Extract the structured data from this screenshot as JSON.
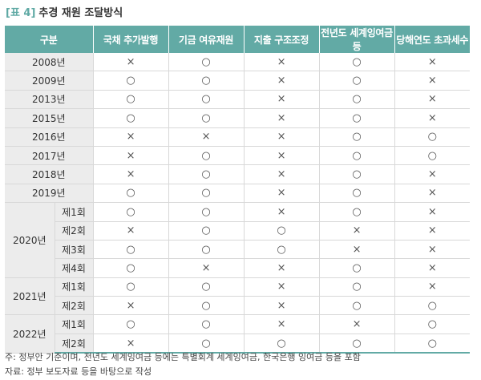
{
  "header": {
    "tag": "[표 4]",
    "title": "추경 재원 조달방식"
  },
  "table": {
    "columns": [
      "구분",
      "국채 추가발행",
      "기금 여유재원",
      "지출 구조조정",
      "전년도 세계잉여금 등",
      "당해연도 초과세수"
    ],
    "groups": [
      {
        "year": "2008년",
        "cells": [
          "×",
          "○",
          "×",
          "○",
          "×"
        ]
      },
      {
        "year": "2009년",
        "cells": [
          "○",
          "○",
          "×",
          "○",
          "×"
        ]
      },
      {
        "year": "2013년",
        "cells": [
          "○",
          "○",
          "×",
          "○",
          "×"
        ]
      },
      {
        "year": "2015년",
        "cells": [
          "○",
          "○",
          "×",
          "○",
          "×"
        ]
      },
      {
        "year": "2016년",
        "cells": [
          "×",
          "×",
          "×",
          "○",
          "○"
        ]
      },
      {
        "year": "2017년",
        "cells": [
          "×",
          "○",
          "×",
          "○",
          "○"
        ]
      },
      {
        "year": "2018년",
        "cells": [
          "×",
          "○",
          "×",
          "○",
          "×"
        ]
      },
      {
        "year": "2019년",
        "cells": [
          "○",
          "○",
          "×",
          "○",
          "×"
        ]
      },
      {
        "year": "2020년",
        "sessions": [
          {
            "label": "제1회",
            "cells": [
              "○",
              "○",
              "×",
              "○",
              "×"
            ]
          },
          {
            "label": "제2회",
            "cells": [
              "×",
              "○",
              "○",
              "×",
              "×"
            ]
          },
          {
            "label": "제3회",
            "cells": [
              "○",
              "○",
              "○",
              "×",
              "×"
            ]
          },
          {
            "label": "제4회",
            "cells": [
              "○",
              "×",
              "×",
              "○",
              "×"
            ]
          }
        ]
      },
      {
        "year": "2021년",
        "sessions": [
          {
            "label": "제1회",
            "cells": [
              "○",
              "○",
              "×",
              "○",
              "×"
            ]
          },
          {
            "label": "제2회",
            "cells": [
              "×",
              "○",
              "×",
              "○",
              "○"
            ]
          }
        ]
      },
      {
        "year": "2022년",
        "sessions": [
          {
            "label": "제1회",
            "cells": [
              "○",
              "○",
              "×",
              "×",
              "○"
            ]
          },
          {
            "label": "제2회",
            "cells": [
              "×",
              "○",
              "○",
              "○",
              "○"
            ]
          }
        ]
      }
    ]
  },
  "notes": [
    "주: 정부안 기준이며, 전년도 세계잉여금 등에는 특별회계 세계잉여금, 한국은행 잉여금 등을 포함",
    "자료: 정부 보도자료 등을 바탕으로 작성"
  ]
}
